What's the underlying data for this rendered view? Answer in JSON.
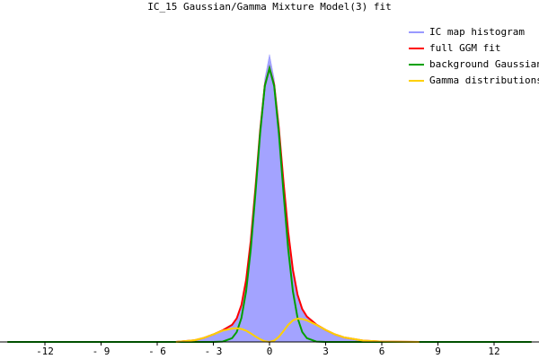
{
  "chart_data": {
    "type": "line",
    "title": "IC_15 Gaussian/Gamma Mixture Model(3) fit",
    "x": [
      -14,
      -12,
      -10,
      -8,
      -6,
      -5,
      -4,
      -3.5,
      -3,
      -2.5,
      -2,
      -1.75,
      -1.5,
      -1.25,
      -1,
      -0.75,
      -0.5,
      -0.25,
      0,
      0.25,
      0.5,
      0.75,
      1,
      1.25,
      1.5,
      1.75,
      2,
      2.5,
      3,
      3.5,
      4,
      5,
      6,
      8,
      10,
      12,
      14
    ],
    "series": [
      {
        "name": "IC map histogram",
        "color": "#9999ff",
        "style": "area",
        "values": [
          0,
          0,
          0,
          0,
          0.001,
          0.002,
          0.006,
          0.013,
          0.024,
          0.036,
          0.053,
          0.072,
          0.112,
          0.186,
          0.302,
          0.46,
          0.63,
          0.77,
          0.84,
          0.77,
          0.635,
          0.475,
          0.328,
          0.215,
          0.142,
          0.1,
          0.077,
          0.053,
          0.036,
          0.023,
          0.014,
          0.005,
          0.002,
          0.001,
          0,
          0,
          0
        ]
      },
      {
        "name": "full GGM fit",
        "color": "#ff0000",
        "values": [
          0,
          0,
          0,
          0,
          0,
          0,
          0.005,
          0.012,
          0.022,
          0.034,
          0.05,
          0.069,
          0.108,
          0.181,
          0.296,
          0.451,
          0.618,
          0.75,
          0.8,
          0.752,
          0.625,
          0.467,
          0.321,
          0.211,
          0.138,
          0.096,
          0.074,
          0.051,
          0.035,
          0.022,
          0.013,
          0.004,
          0.001,
          0,
          0,
          0,
          0
        ]
      },
      {
        "name": "background Gaussian",
        "color": "#00a000",
        "values": [
          0,
          0,
          0,
          0,
          0,
          0,
          0,
          0,
          0,
          0.001,
          0.011,
          0.029,
          0.07,
          0.148,
          0.271,
          0.435,
          0.61,
          0.748,
          0.8,
          0.748,
          0.61,
          0.435,
          0.271,
          0.148,
          0.07,
          0.029,
          0.011,
          0.001,
          0,
          0,
          0,
          0,
          0,
          0,
          0,
          0,
          0
        ]
      },
      {
        "name": "Gamma distributions",
        "color": "#ffd000",
        "values": [
          null,
          null,
          null,
          null,
          null,
          0,
          0.005,
          0.012,
          0.022,
          0.033,
          0.039,
          0.04,
          0.038,
          0.033,
          0.025,
          0.016,
          0.008,
          0.002,
          0,
          0.004,
          0.015,
          0.032,
          0.05,
          0.063,
          0.068,
          0.067,
          0.063,
          0.05,
          0.035,
          0.022,
          0.013,
          0.004,
          0.001,
          0,
          null,
          null,
          null
        ]
      }
    ],
    "xlim": [
      -14.4,
      14.4
    ],
    "ylim": [
      0,
      0.96
    ],
    "xticks": [
      -12,
      {
        "value": -9,
        "label": "- 9"
      },
      {
        "value": -6,
        "label": "- 6"
      },
      {
        "value": -3,
        "label": "- 3"
      },
      0,
      3,
      6,
      9,
      12
    ],
    "legend": "top-right"
  }
}
